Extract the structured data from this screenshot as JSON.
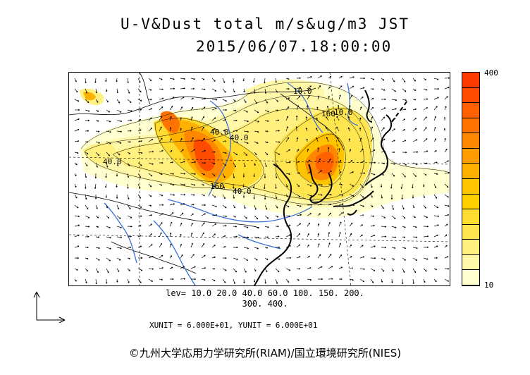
{
  "title": {
    "line1": "U-V&Dust total m/s&ug/m3 JST",
    "line2": "2015/06/07.18:00:00"
  },
  "colorbar": {
    "max_label": "400",
    "min_label": "10",
    "colors": [
      "#ffffd0",
      "#fff8a8",
      "#fff080",
      "#ffe650",
      "#ffdc30",
      "#ffd000",
      "#ffc400",
      "#ffb000",
      "#ff9c00",
      "#ff8800",
      "#ff7400",
      "#ff6000",
      "#ff4c00",
      "#ff3a00"
    ]
  },
  "map": {
    "contour_labels": [
      "40.0",
      "10.0",
      "10.0",
      "40.0",
      "40.0",
      "160",
      "40.0",
      "160"
    ]
  },
  "levels": {
    "line1": "lev= 10.0 20.0 40.0 60.0 100. 150. 200.",
    "line2": "300. 400."
  },
  "units": "XUNIT = 6.000E+01, YUNIT = 6.000E+01",
  "copyright": "©九州大学応用力学研究所(RIAM)/国立環境研究所(NIES)"
}
